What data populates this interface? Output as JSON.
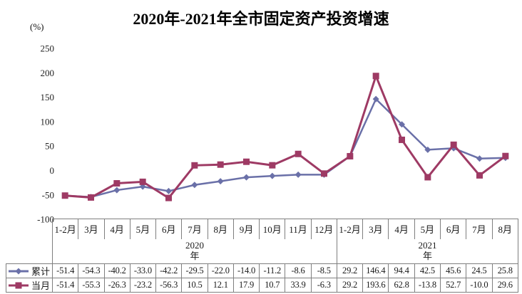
{
  "title": "2020年-2021年全市固定资产投资增速",
  "y_axis_unit": "(%)",
  "colors": {
    "cumulative": "#6A70A8",
    "monthly": "#9E3A64",
    "table_border": "#7f7f7f",
    "text": "#1a1a1a"
  },
  "chart_data": {
    "type": "line",
    "title": "2020年-2021年全市固定资产投资增速",
    "ylabel": "(%)",
    "categories": [
      "1-2月",
      "3月",
      "4月",
      "5月",
      "6月",
      "7月",
      "8月",
      "9月",
      "10月",
      "11月",
      "12月",
      "1-2月",
      "3月",
      "4月",
      "5月",
      "6月",
      "7月",
      "8月"
    ],
    "year_groups": [
      {
        "label": "2020年",
        "span": 11
      },
      {
        "label": "2021年",
        "span": 7
      }
    ],
    "series": [
      {
        "key": "cumulative",
        "name": "累计",
        "marker": "diamond",
        "color": "#6A70A8",
        "values": [
          -51.4,
          -54.3,
          -40.2,
          -33.0,
          -42.2,
          -29.5,
          -22.0,
          -14.0,
          -11.2,
          -8.6,
          -8.5,
          29.2,
          146.4,
          94.4,
          42.5,
          45.6,
          24.5,
          25.8
        ]
      },
      {
        "key": "monthly",
        "name": "当月",
        "marker": "square",
        "color": "#9E3A64",
        "values": [
          -51.4,
          -55.3,
          -26.3,
          -23.2,
          -56.3,
          10.5,
          12.1,
          17.9,
          10.7,
          33.9,
          -6.3,
          29.2,
          193.6,
          62.8,
          -13.8,
          52.7,
          -10.0,
          29.6
        ]
      }
    ],
    "ylim": [
      -100,
      250
    ],
    "yticks": [
      250,
      200,
      150,
      100,
      50,
      0,
      -50,
      -100
    ],
    "grid": false,
    "legend_position": "table-left"
  }
}
